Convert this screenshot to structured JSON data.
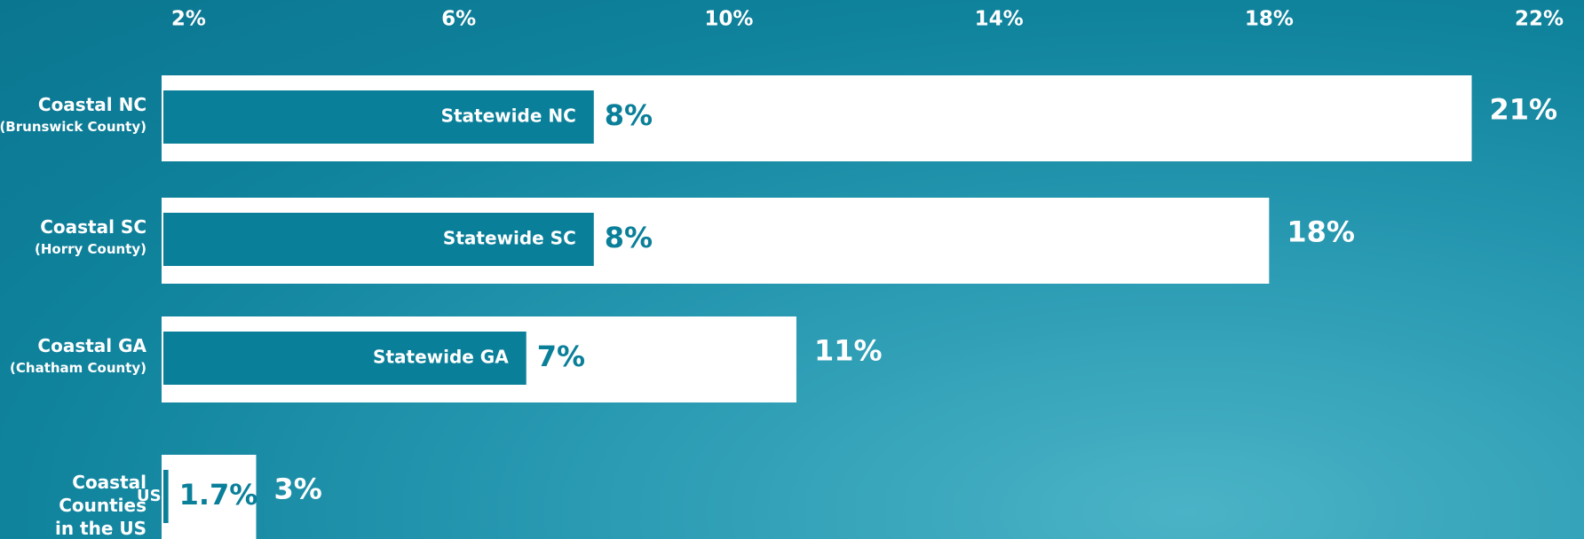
{
  "chart_data": {
    "type": "bar",
    "orientation": "horizontal",
    "categories": [
      "Coastal NC",
      "Coastal SC",
      "Coastal GA",
      "Coastal Counties in the US"
    ],
    "category_notes": [
      "(Brunswick County)",
      "(Horry County)",
      "(Chatham County)",
      null
    ],
    "series": [
      {
        "color": "#ffffff",
        "values": [
          21,
          18,
          11,
          3
        ],
        "value_labels": [
          "21%",
          "18%",
          "11%",
          "3%"
        ]
      },
      {
        "color": "#0a7f99",
        "values": [
          8,
          8,
          7,
          1.7
        ],
        "value_labels": [
          "8%",
          "8%",
          "7%",
          "1.7%"
        ],
        "bar_labels": [
          "Statewide NC",
          "Statewide SC",
          "Statewide GA",
          "US"
        ]
      }
    ],
    "xlim": [
      1.6,
      22.4
    ],
    "xticks": [
      {
        "value": 2,
        "label": "2%"
      },
      {
        "value": 6,
        "label": "6%"
      },
      {
        "value": 10,
        "label": "10%"
      },
      {
        "value": 14,
        "label": "14%"
      },
      {
        "value": 18,
        "label": "18%"
      },
      {
        "value": 22,
        "label": "22%"
      }
    ]
  }
}
